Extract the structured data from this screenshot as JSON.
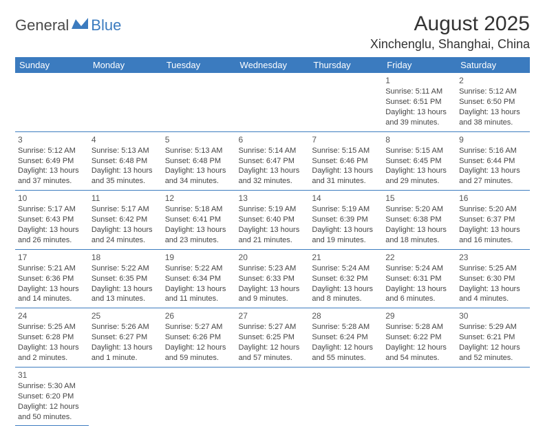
{
  "logo": {
    "part1": "General",
    "part2": "Blue"
  },
  "header": {
    "title": "August 2025",
    "location": "Xinchenglu, Shanghai, China"
  },
  "colors": {
    "accent": "#3b7bbf",
    "text": "#333333",
    "bg": "#ffffff"
  },
  "weekdays": [
    "Sunday",
    "Monday",
    "Tuesday",
    "Wednesday",
    "Thursday",
    "Friday",
    "Saturday"
  ],
  "weeks": [
    [
      null,
      null,
      null,
      null,
      null,
      {
        "d": "1",
        "sr": "Sunrise: 5:11 AM",
        "ss": "Sunset: 6:51 PM",
        "dl": "Daylight: 13 hours and 39 minutes."
      },
      {
        "d": "2",
        "sr": "Sunrise: 5:12 AM",
        "ss": "Sunset: 6:50 PM",
        "dl": "Daylight: 13 hours and 38 minutes."
      }
    ],
    [
      {
        "d": "3",
        "sr": "Sunrise: 5:12 AM",
        "ss": "Sunset: 6:49 PM",
        "dl": "Daylight: 13 hours and 37 minutes."
      },
      {
        "d": "4",
        "sr": "Sunrise: 5:13 AM",
        "ss": "Sunset: 6:48 PM",
        "dl": "Daylight: 13 hours and 35 minutes."
      },
      {
        "d": "5",
        "sr": "Sunrise: 5:13 AM",
        "ss": "Sunset: 6:48 PM",
        "dl": "Daylight: 13 hours and 34 minutes."
      },
      {
        "d": "6",
        "sr": "Sunrise: 5:14 AM",
        "ss": "Sunset: 6:47 PM",
        "dl": "Daylight: 13 hours and 32 minutes."
      },
      {
        "d": "7",
        "sr": "Sunrise: 5:15 AM",
        "ss": "Sunset: 6:46 PM",
        "dl": "Daylight: 13 hours and 31 minutes."
      },
      {
        "d": "8",
        "sr": "Sunrise: 5:15 AM",
        "ss": "Sunset: 6:45 PM",
        "dl": "Daylight: 13 hours and 29 minutes."
      },
      {
        "d": "9",
        "sr": "Sunrise: 5:16 AM",
        "ss": "Sunset: 6:44 PM",
        "dl": "Daylight: 13 hours and 27 minutes."
      }
    ],
    [
      {
        "d": "10",
        "sr": "Sunrise: 5:17 AM",
        "ss": "Sunset: 6:43 PM",
        "dl": "Daylight: 13 hours and 26 minutes."
      },
      {
        "d": "11",
        "sr": "Sunrise: 5:17 AM",
        "ss": "Sunset: 6:42 PM",
        "dl": "Daylight: 13 hours and 24 minutes."
      },
      {
        "d": "12",
        "sr": "Sunrise: 5:18 AM",
        "ss": "Sunset: 6:41 PM",
        "dl": "Daylight: 13 hours and 23 minutes."
      },
      {
        "d": "13",
        "sr": "Sunrise: 5:19 AM",
        "ss": "Sunset: 6:40 PM",
        "dl": "Daylight: 13 hours and 21 minutes."
      },
      {
        "d": "14",
        "sr": "Sunrise: 5:19 AM",
        "ss": "Sunset: 6:39 PM",
        "dl": "Daylight: 13 hours and 19 minutes."
      },
      {
        "d": "15",
        "sr": "Sunrise: 5:20 AM",
        "ss": "Sunset: 6:38 PM",
        "dl": "Daylight: 13 hours and 18 minutes."
      },
      {
        "d": "16",
        "sr": "Sunrise: 5:20 AM",
        "ss": "Sunset: 6:37 PM",
        "dl": "Daylight: 13 hours and 16 minutes."
      }
    ],
    [
      {
        "d": "17",
        "sr": "Sunrise: 5:21 AM",
        "ss": "Sunset: 6:36 PM",
        "dl": "Daylight: 13 hours and 14 minutes."
      },
      {
        "d": "18",
        "sr": "Sunrise: 5:22 AM",
        "ss": "Sunset: 6:35 PM",
        "dl": "Daylight: 13 hours and 13 minutes."
      },
      {
        "d": "19",
        "sr": "Sunrise: 5:22 AM",
        "ss": "Sunset: 6:34 PM",
        "dl": "Daylight: 13 hours and 11 minutes."
      },
      {
        "d": "20",
        "sr": "Sunrise: 5:23 AM",
        "ss": "Sunset: 6:33 PM",
        "dl": "Daylight: 13 hours and 9 minutes."
      },
      {
        "d": "21",
        "sr": "Sunrise: 5:24 AM",
        "ss": "Sunset: 6:32 PM",
        "dl": "Daylight: 13 hours and 8 minutes."
      },
      {
        "d": "22",
        "sr": "Sunrise: 5:24 AM",
        "ss": "Sunset: 6:31 PM",
        "dl": "Daylight: 13 hours and 6 minutes."
      },
      {
        "d": "23",
        "sr": "Sunrise: 5:25 AM",
        "ss": "Sunset: 6:30 PM",
        "dl": "Daylight: 13 hours and 4 minutes."
      }
    ],
    [
      {
        "d": "24",
        "sr": "Sunrise: 5:25 AM",
        "ss": "Sunset: 6:28 PM",
        "dl": "Daylight: 13 hours and 2 minutes."
      },
      {
        "d": "25",
        "sr": "Sunrise: 5:26 AM",
        "ss": "Sunset: 6:27 PM",
        "dl": "Daylight: 13 hours and 1 minute."
      },
      {
        "d": "26",
        "sr": "Sunrise: 5:27 AM",
        "ss": "Sunset: 6:26 PM",
        "dl": "Daylight: 12 hours and 59 minutes."
      },
      {
        "d": "27",
        "sr": "Sunrise: 5:27 AM",
        "ss": "Sunset: 6:25 PM",
        "dl": "Daylight: 12 hours and 57 minutes."
      },
      {
        "d": "28",
        "sr": "Sunrise: 5:28 AM",
        "ss": "Sunset: 6:24 PM",
        "dl": "Daylight: 12 hours and 55 minutes."
      },
      {
        "d": "29",
        "sr": "Sunrise: 5:28 AM",
        "ss": "Sunset: 6:22 PM",
        "dl": "Daylight: 12 hours and 54 minutes."
      },
      {
        "d": "30",
        "sr": "Sunrise: 5:29 AM",
        "ss": "Sunset: 6:21 PM",
        "dl": "Daylight: 12 hours and 52 minutes."
      }
    ],
    [
      {
        "d": "31",
        "sr": "Sunrise: 5:30 AM",
        "ss": "Sunset: 6:20 PM",
        "dl": "Daylight: 12 hours and 50 minutes."
      },
      null,
      null,
      null,
      null,
      null,
      null
    ]
  ]
}
